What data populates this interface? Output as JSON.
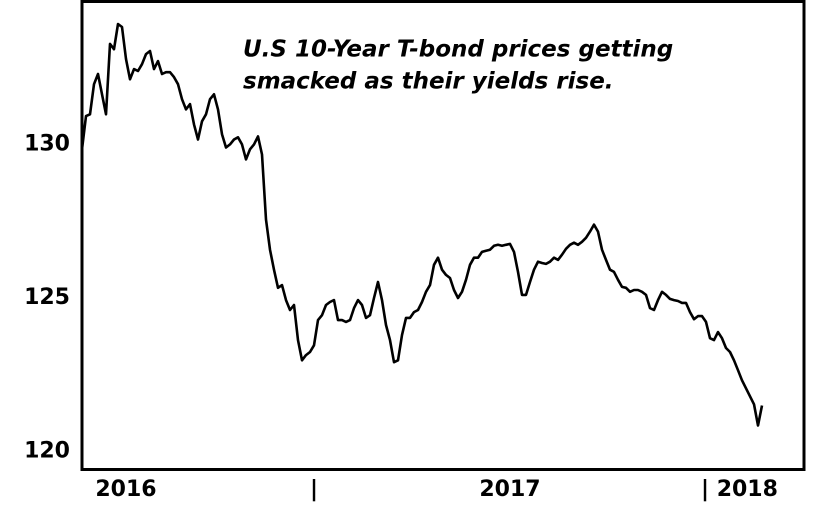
{
  "chart_data": {
    "type": "line",
    "annotations": [
      "U.S 10-Year T-bond prices getting",
      "smacked as their yields rise."
    ],
    "categories": [
      null,
      null,
      null,
      null,
      null,
      null,
      null,
      null,
      null,
      null,
      null,
      "2016",
      null,
      null,
      null,
      null,
      null,
      null,
      null,
      null,
      null,
      null,
      null,
      null,
      null,
      null,
      null,
      null,
      null,
      null,
      null,
      null,
      null,
      null,
      null,
      null,
      null,
      null,
      null,
      null,
      null,
      null,
      null,
      null,
      null,
      null,
      null,
      null,
      null,
      null,
      null,
      null,
      null,
      null,
      null,
      null,
      null,
      null,
      "|",
      null,
      null,
      null,
      null,
      null,
      null,
      null,
      null,
      null,
      null,
      null,
      null,
      null,
      null,
      null,
      null,
      null,
      null,
      null,
      null,
      null,
      null,
      null,
      null,
      null,
      null,
      null,
      null,
      null,
      null,
      null,
      null,
      null,
      null,
      null,
      null,
      null,
      null,
      null,
      null,
      null,
      null,
      null,
      null,
      null,
      null,
      null,
      null,
      "2017",
      null,
      null,
      null,
      null,
      null,
      null,
      null,
      null,
      null,
      null,
      null,
      null,
      null,
      null,
      null,
      null,
      null,
      null,
      null,
      null,
      null,
      null,
      null,
      null,
      null,
      null,
      null,
      null,
      null,
      null,
      null,
      null,
      null,
      null,
      null,
      null,
      null,
      null,
      null,
      null,
      null,
      null,
      null,
      null,
      null,
      null,
      null,
      null,
      "| 2018",
      null,
      null,
      null,
      null,
      null,
      null,
      null,
      null,
      null,
      null,
      null,
      null,
      null,
      null
    ],
    "series": [
      {
        "name": "10-Year T-bond price",
        "color": "#000000",
        "values": [
          129.84,
          130.92,
          130.98,
          131.96,
          132.29,
          131.63,
          130.98,
          133.27,
          133.1,
          133.92,
          133.82,
          132.78,
          132.12,
          132.45,
          132.39,
          132.61,
          132.94,
          133.04,
          132.45,
          132.71,
          132.29,
          132.35,
          132.35,
          132.19,
          131.96,
          131.47,
          131.14,
          131.31,
          130.65,
          130.16,
          130.75,
          130.98,
          131.47,
          131.63,
          131.14,
          130.33,
          129.9,
          130.0,
          130.16,
          130.23,
          130.0,
          129.51,
          129.84,
          130.0,
          130.26,
          129.67,
          127.55,
          126.57,
          125.92,
          125.33,
          125.42,
          124.93,
          124.61,
          124.77,
          123.63,
          122.97,
          123.14,
          123.24,
          123.46,
          124.28,
          124.44,
          124.77,
          124.87,
          124.93,
          124.28,
          124.28,
          124.22,
          124.28,
          124.67,
          124.93,
          124.77,
          124.35,
          124.44,
          125.0,
          125.52,
          124.93,
          124.12,
          123.63,
          122.91,
          122.97,
          123.79,
          124.35,
          124.35,
          124.54,
          124.61,
          124.87,
          125.2,
          125.42,
          126.08,
          126.31,
          125.92,
          125.75,
          125.65,
          125.26,
          125.0,
          125.2,
          125.59,
          126.08,
          126.31,
          126.31,
          126.5,
          126.54,
          126.57,
          126.7,
          126.73,
          126.7,
          126.73,
          126.76,
          126.5,
          125.85,
          125.1,
          125.1,
          125.52,
          125.92,
          126.18,
          126.14,
          126.11,
          126.18,
          126.31,
          126.24,
          126.41,
          126.6,
          126.73,
          126.8,
          126.73,
          126.83,
          126.96,
          127.16,
          127.39,
          127.16,
          126.57,
          126.24,
          125.92,
          125.85,
          125.59,
          125.36,
          125.33,
          125.2,
          125.26,
          125.26,
          125.2,
          125.1,
          124.67,
          124.61,
          124.93,
          125.2,
          125.1,
          124.97,
          124.93,
          124.9,
          124.84,
          124.84,
          124.54,
          124.31,
          124.41,
          124.41,
          124.22,
          123.69,
          123.63,
          123.89,
          123.69,
          123.37,
          123.24,
          122.97,
          122.65,
          122.32,
          122.06,
          121.8,
          121.54,
          120.85,
          121.5
        ]
      }
    ],
    "ylim": [
      119.4,
      134.7
    ],
    "yticks": [
      120,
      125,
      130
    ],
    "grid": false
  }
}
